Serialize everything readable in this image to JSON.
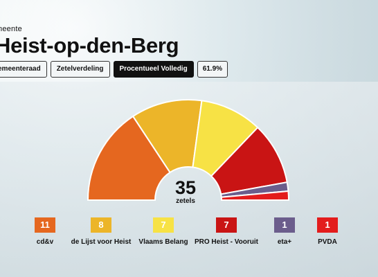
{
  "header": {
    "label": "meente",
    "title": "Heist-op-den-Berg"
  },
  "tabs": [
    {
      "label": "emeenteraad"
    },
    {
      "label": "Zetelverdeling"
    },
    {
      "label": "Procentueel Volledig",
      "active": true
    },
    {
      "label": "61.9%"
    }
  ],
  "total": {
    "value": "35",
    "label": "zetels"
  },
  "chart_data": {
    "type": "pie",
    "variant": "half-donut",
    "total_seats": 35,
    "categories": [
      "cd&v",
      "de Lijst voor Heist",
      "Vlaams Belang",
      "PRO Heist - Vooruit",
      "eta+",
      "PVDA"
    ],
    "values": [
      11,
      8,
      7,
      7,
      1,
      1
    ],
    "colors": [
      "#e5671f",
      "#ecb529",
      "#f7e245",
      "#c91414",
      "#6b5d8c",
      "#e31c1c"
    ]
  },
  "legend": [
    {
      "value": "11",
      "name": "cd&v",
      "color": "#e5671f"
    },
    {
      "value": "8",
      "name": "de Lijst voor Heist",
      "color": "#ecb529"
    },
    {
      "value": "7",
      "name": "Vlaams Belang",
      "color": "#f7e245"
    },
    {
      "value": "7",
      "name": "PRO Heist - Vooruit",
      "color": "#c91414"
    },
    {
      "value": "1",
      "name": "eta+",
      "color": "#6b5d8c"
    },
    {
      "value": "1",
      "name": "PVDA",
      "color": "#e31c1c"
    }
  ]
}
